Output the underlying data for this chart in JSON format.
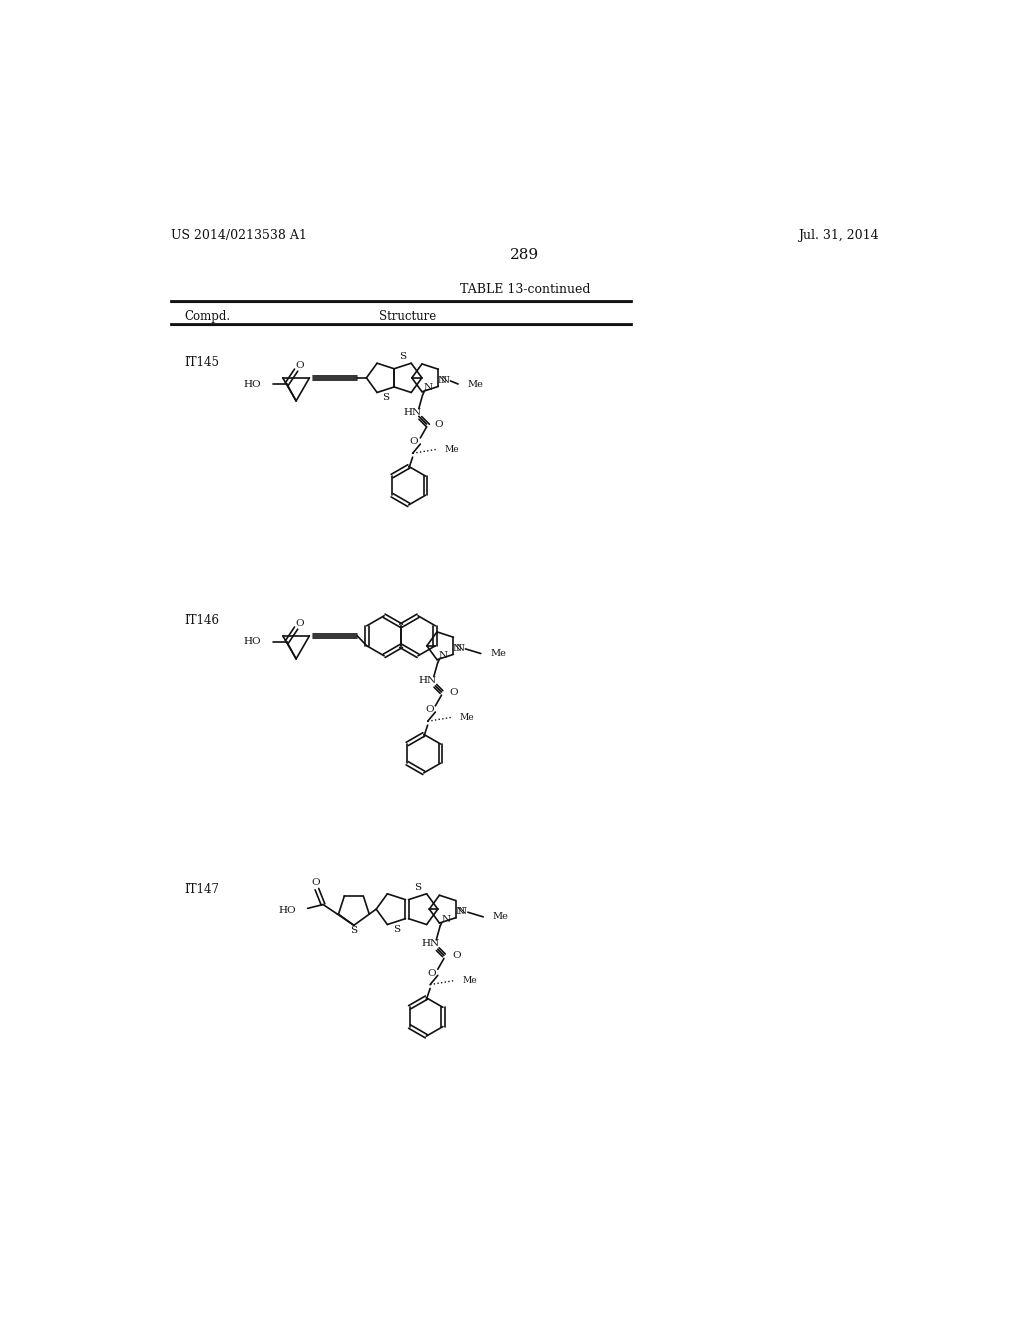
{
  "page_width": 10.24,
  "page_height": 13.2,
  "background_color": "#ffffff",
  "header_left": "US 2014/0213538 A1",
  "header_right": "Jul. 31, 2014",
  "page_number": "289",
  "table_title": "TABLE 13-continued",
  "col1_header": "Compd.",
  "col2_header": "Structure",
  "compounds": [
    "IT145",
    "IT146",
    "IT147"
  ],
  "header_font_size": 9,
  "table_title_font_size": 9,
  "col_header_font_size": 8.5,
  "compound_font_size": 8.5,
  "page_num_font_size": 11
}
